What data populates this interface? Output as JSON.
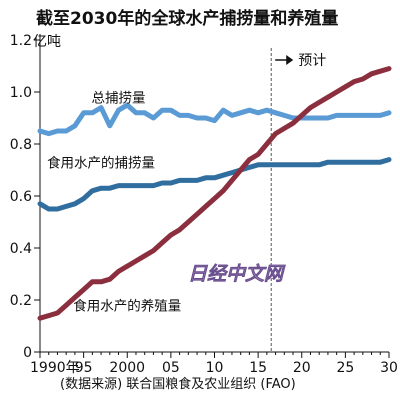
{
  "chart_data": {
    "type": "line",
    "title": "截至2030年的全球水产捕捞量和养殖量",
    "ylabel": "亿吨",
    "ylim": [
      0,
      1.2
    ],
    "xlim": [
      1990,
      2030
    ],
    "grid": false,
    "legend": "inline labels",
    "yticks": [
      {
        "value": 0,
        "label": "0"
      },
      {
        "value": 0.2,
        "label": "0.2"
      },
      {
        "value": 0.4,
        "label": "0.4"
      },
      {
        "value": 0.6,
        "label": "0.6"
      },
      {
        "value": 0.8,
        "label": "0.8"
      },
      {
        "value": 1.0,
        "label": "1.0"
      },
      {
        "value": 1.2,
        "label": "1.2"
      }
    ],
    "xticks": [
      {
        "value": 1990,
        "label": "1990年"
      },
      {
        "value": 1995,
        "label": "95"
      },
      {
        "value": 2000,
        "label": "2000"
      },
      {
        "value": 2005,
        "label": "05"
      },
      {
        "value": 2010,
        "label": "10"
      },
      {
        "value": 2015,
        "label": "15"
      },
      {
        "value": 2020,
        "label": "20"
      },
      {
        "value": 2025,
        "label": "25"
      },
      {
        "value": 2030,
        "label": "30"
      }
    ],
    "forecast": {
      "start_year": 2016.5,
      "label": "预计"
    },
    "series": [
      {
        "name": "总捕捞量",
        "color": "#5b9bd5",
        "label_anchor": {
          "x": 1999,
          "y": 0.96
        },
        "x": [
          1990,
          1991,
          1992,
          1993,
          1994,
          1995,
          1996,
          1997,
          1998,
          1999,
          2000,
          2001,
          2002,
          2003,
          2004,
          2005,
          2006,
          2007,
          2008,
          2009,
          2010,
          2011,
          2012,
          2013,
          2014,
          2015,
          2016,
          2017,
          2018,
          2019,
          2020,
          2021,
          2022,
          2023,
          2024,
          2025,
          2026,
          2027,
          2028,
          2029,
          2030
        ],
        "y": [
          0.85,
          0.84,
          0.85,
          0.85,
          0.87,
          0.92,
          0.92,
          0.94,
          0.87,
          0.93,
          0.95,
          0.92,
          0.92,
          0.9,
          0.93,
          0.93,
          0.91,
          0.91,
          0.9,
          0.9,
          0.89,
          0.93,
          0.91,
          0.92,
          0.93,
          0.92,
          0.93,
          0.92,
          0.91,
          0.9,
          0.9,
          0.9,
          0.9,
          0.9,
          0.91,
          0.91,
          0.91,
          0.91,
          0.91,
          0.91,
          0.92
        ]
      },
      {
        "name": "食用水产的捕捞量",
        "color": "#2f6e9e",
        "label_anchor": {
          "x": 1997,
          "y": 0.71
        },
        "x": [
          1990,
          1991,
          1992,
          1993,
          1994,
          1995,
          1996,
          1997,
          1998,
          1999,
          2000,
          2001,
          2002,
          2003,
          2004,
          2005,
          2006,
          2007,
          2008,
          2009,
          2010,
          2011,
          2012,
          2013,
          2014,
          2015,
          2016,
          2017,
          2018,
          2019,
          2020,
          2021,
          2022,
          2023,
          2024,
          2025,
          2026,
          2027,
          2028,
          2029,
          2030
        ],
        "y": [
          0.57,
          0.55,
          0.55,
          0.56,
          0.57,
          0.59,
          0.62,
          0.63,
          0.63,
          0.64,
          0.64,
          0.64,
          0.64,
          0.64,
          0.65,
          0.65,
          0.66,
          0.66,
          0.66,
          0.67,
          0.67,
          0.68,
          0.69,
          0.7,
          0.71,
          0.72,
          0.72,
          0.72,
          0.72,
          0.72,
          0.72,
          0.72,
          0.72,
          0.73,
          0.73,
          0.73,
          0.73,
          0.73,
          0.73,
          0.73,
          0.74
        ]
      },
      {
        "name": "食用水产的养殖量",
        "color": "#8b2f3f",
        "label_anchor": {
          "x": 2000,
          "y": 0.16
        },
        "x": [
          1990,
          1991,
          1992,
          1993,
          1994,
          1995,
          1996,
          1997,
          1998,
          1999,
          2000,
          2001,
          2002,
          2003,
          2004,
          2005,
          2006,
          2007,
          2008,
          2009,
          2010,
          2011,
          2012,
          2013,
          2014,
          2015,
          2016,
          2017,
          2018,
          2019,
          2020,
          2021,
          2022,
          2023,
          2024,
          2025,
          2026,
          2027,
          2028,
          2029,
          2030
        ],
        "y": [
          0.13,
          0.14,
          0.15,
          0.18,
          0.21,
          0.24,
          0.27,
          0.27,
          0.28,
          0.31,
          0.33,
          0.35,
          0.37,
          0.39,
          0.42,
          0.45,
          0.47,
          0.5,
          0.53,
          0.56,
          0.59,
          0.62,
          0.66,
          0.7,
          0.74,
          0.76,
          0.8,
          0.84,
          0.86,
          0.88,
          0.91,
          0.94,
          0.96,
          0.98,
          1.0,
          1.02,
          1.04,
          1.05,
          1.07,
          1.08,
          1.09
        ]
      }
    ]
  },
  "source": "(数据来源) 联合国粮食及农业组织 (FAO)",
  "watermark": "日经中文网"
}
